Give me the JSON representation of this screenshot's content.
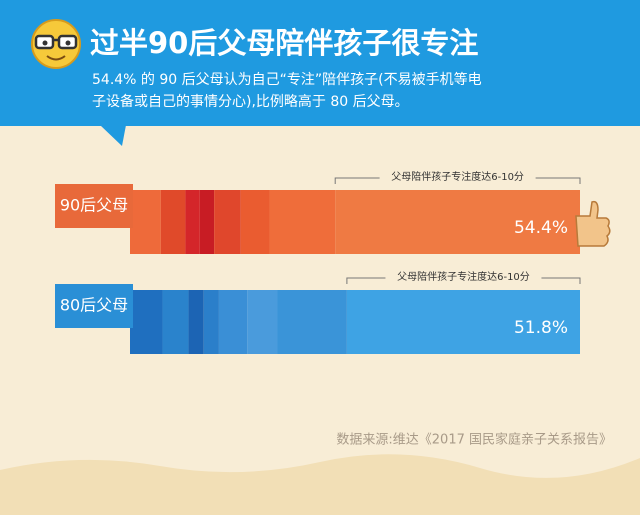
{
  "chart_data": {
    "type": "bar",
    "orientation": "horizontal",
    "title": "过半90后父母陪伴孩子很专注",
    "subtitle": [
      "54.4% 的 90 后父母认为自己“专注”陪伴孩子(不易被手机等电",
      "子设备或自己的事情分心),比例略高于 80 后父母。"
    ],
    "annotation": "父母陪伴孩子专注度达6-10分",
    "categories": [
      "90后父母",
      "80后父母"
    ],
    "values": [
      54.4,
      51.8
    ],
    "value_labels": [
      "54.4%",
      "51.8%"
    ],
    "colors": [
      "#ef7a43",
      "#3ea3e4"
    ],
    "xlim": [
      0,
      100
    ],
    "source": "数据来源:维达《2017 国民家庭亲子关系报告》"
  }
}
